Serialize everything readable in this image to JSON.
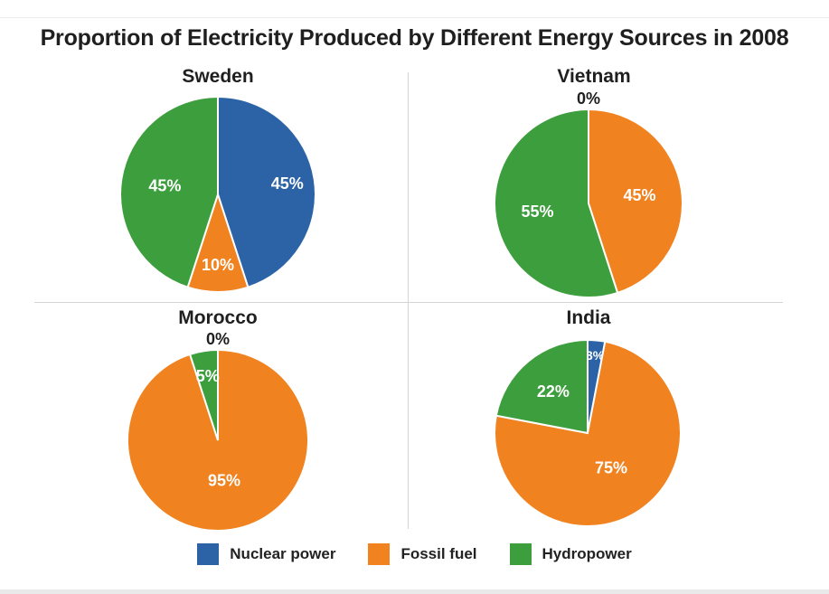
{
  "title": "Proportion of Electricity Produced by Different Energy Sources in 2008",
  "colors": {
    "Nuclear power": "#2b63a6",
    "Fossil fuel": "#f0821f",
    "Hydropower": "#3d9e3d"
  },
  "legend": [
    {
      "label": "Nuclear power",
      "color": "#2b63a6"
    },
    {
      "label": "Fossil fuel",
      "color": "#f0821f"
    },
    {
      "label": "Hydropower",
      "color": "#3d9e3d"
    }
  ],
  "chart_data": [
    {
      "type": "pie",
      "title": "Sweden",
      "categories": [
        "Nuclear power",
        "Fossil fuel",
        "Hydropower"
      ],
      "values": [
        45,
        10,
        45
      ],
      "labels": [
        "45%",
        "10%",
        "45%"
      ]
    },
    {
      "type": "pie",
      "title": "Vietnam",
      "categories": [
        "Nuclear power",
        "Fossil fuel",
        "Hydropower"
      ],
      "values": [
        0,
        45,
        55
      ],
      "labels": [
        "0%",
        "45%",
        "55%"
      ]
    },
    {
      "type": "pie",
      "title": "Morocco",
      "categories": [
        "Nuclear power",
        "Fossil fuel",
        "Hydropower"
      ],
      "values": [
        0,
        95,
        5
      ],
      "labels": [
        "0%",
        "95%",
        "5%"
      ]
    },
    {
      "type": "pie",
      "title": "India",
      "categories": [
        "Nuclear power",
        "Fossil fuel",
        "Hydropower"
      ],
      "values": [
        3,
        75,
        22
      ],
      "labels": [
        "3%",
        "75%",
        "22%"
      ]
    }
  ]
}
